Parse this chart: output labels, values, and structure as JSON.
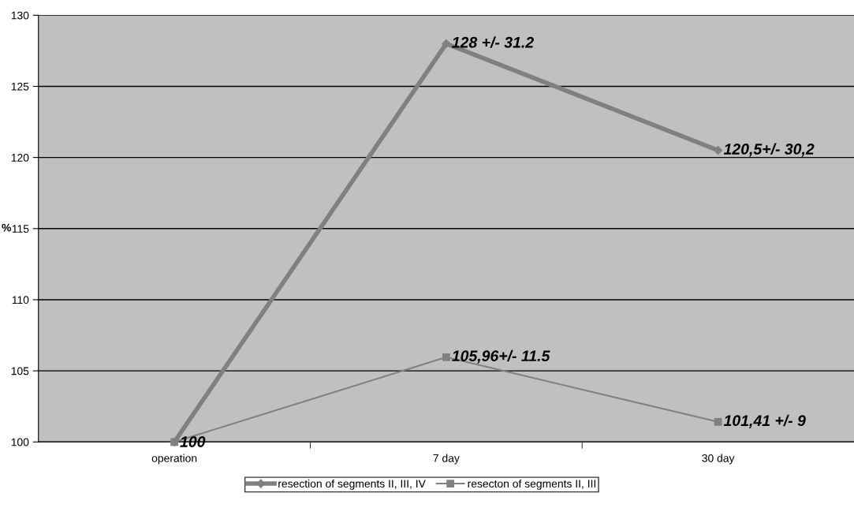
{
  "chart_data": {
    "type": "line",
    "ylabel": "%",
    "categories": [
      "operation",
      "7 day",
      "30 day"
    ],
    "series": [
      {
        "name": "resection of segments II, III, IV",
        "color": "#808080",
        "values": [
          100,
          128,
          120.5
        ],
        "marker": "diamond",
        "value_labels": [
          "100",
          "128 +/- 31.2",
          "120,5+/- 30,2"
        ]
      },
      {
        "name": "resecton of segments II, III",
        "color": "#808080",
        "values": [
          100,
          105.96,
          101.41
        ],
        "marker": "square",
        "value_labels": [
          null,
          "105,96+/- 11.5",
          "101,41 +/- 9"
        ]
      }
    ],
    "ylim": [
      100,
      130
    ],
    "yticks": [
      100,
      105,
      110,
      115,
      120,
      125,
      130
    ],
    "grid": "y",
    "legend": "bottom"
  }
}
